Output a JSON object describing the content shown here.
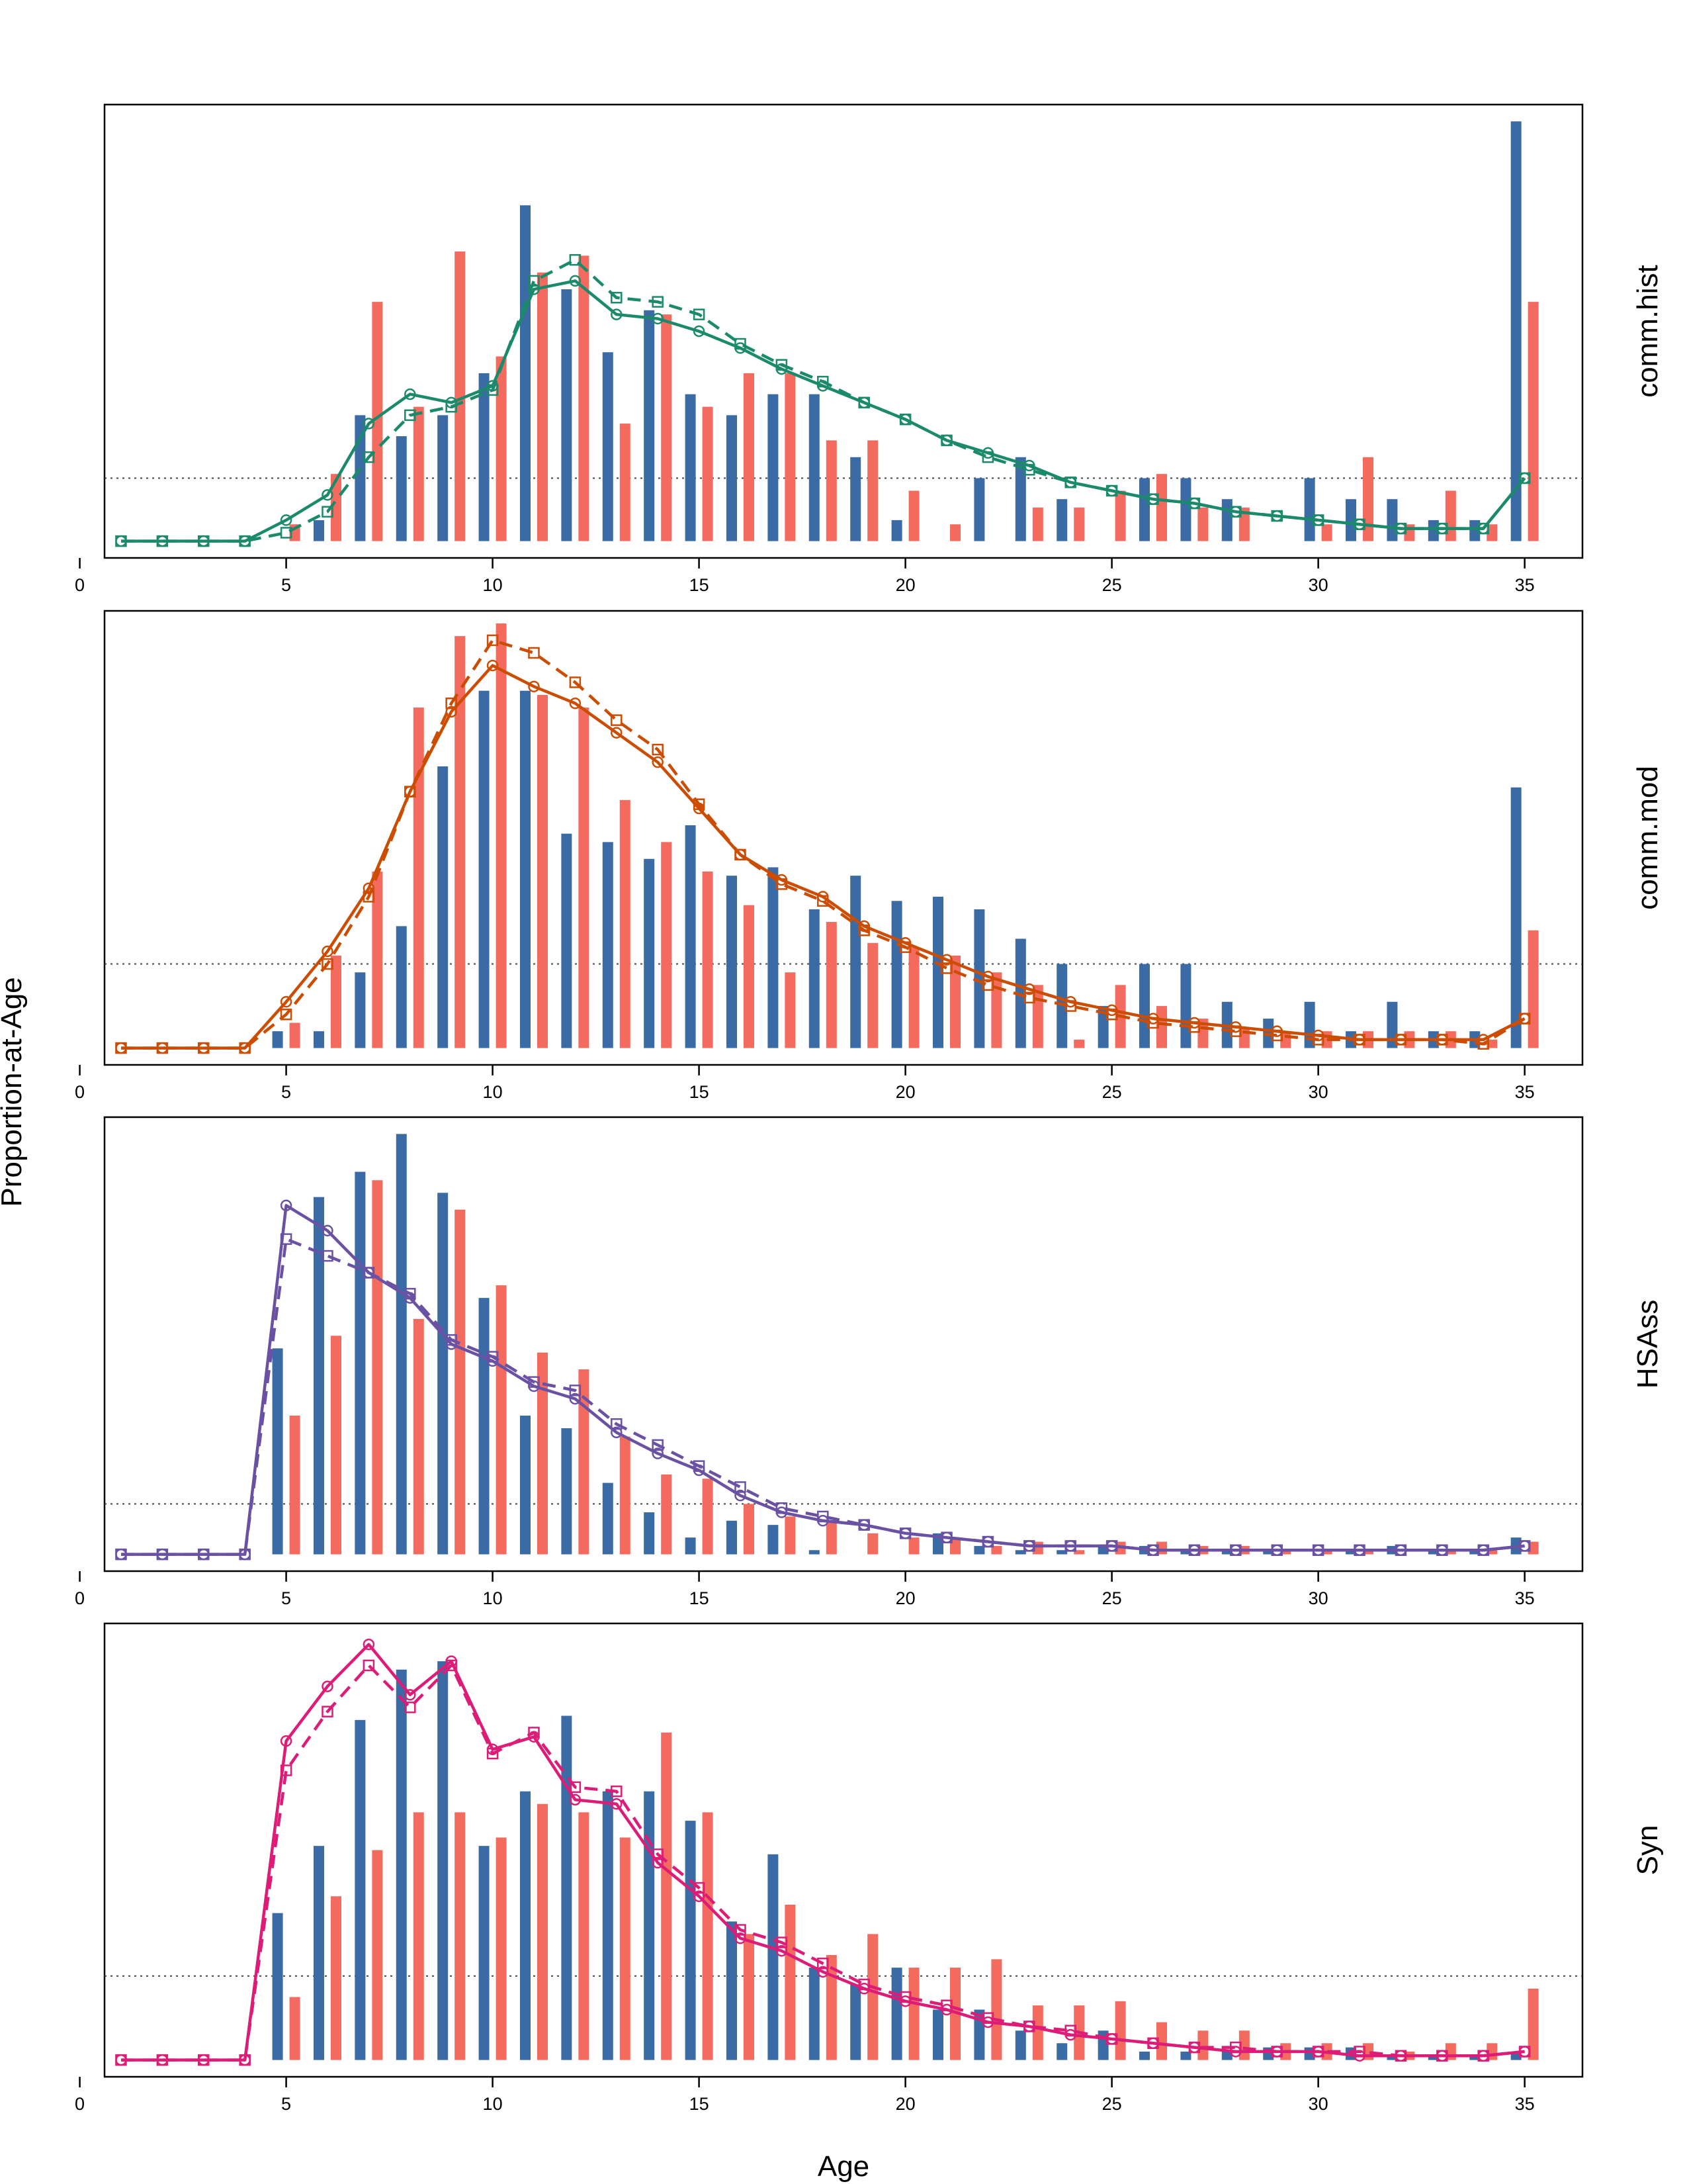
{
  "figure": {
    "xlabel": "Age",
    "ylabel": "Proportion-at-Age",
    "colors": {
      "bar_series_1": "#3b6ba5",
      "bar_series_2": "#f26b5e",
      "frame": "#000000",
      "reference_line": "#444444"
    }
  },
  "chart_data": [
    {
      "type": "bar",
      "panel": "comm.hist",
      "line_color": "#1b8a6b",
      "x": [
        1,
        2,
        3,
        4,
        5,
        6,
        7,
        8,
        9,
        10,
        11,
        12,
        13,
        14,
        15,
        16,
        17,
        18,
        19,
        20,
        21,
        22,
        23,
        24,
        25,
        26,
        27,
        28,
        29,
        30,
        31,
        32,
        33,
        34,
        35
      ],
      "xlim": [
        0.6,
        36.4
      ],
      "xticks": [
        0,
        5,
        10,
        15,
        20,
        25,
        30,
        35
      ],
      "ylim": [
        -0.004,
        0.104
      ],
      "reference_line": 0.015,
      "series": [
        {
          "values": [
            0,
            0,
            0,
            0,
            0,
            0.005,
            0.03,
            0.025,
            0.03,
            0.04,
            0.08,
            0.06,
            0.045,
            0.055,
            0.035,
            0.03,
            0.035,
            0.035,
            0.02,
            0.005,
            0,
            0.015,
            0.02,
            0.01,
            0,
            0.015,
            0.015,
            0.01,
            0,
            0.015,
            0.01,
            0.01,
            0.005,
            0.005,
            0.1
          ]
        },
        {
          "values": [
            0,
            0,
            0,
            0,
            0.004,
            0.016,
            0.057,
            0.032,
            0.069,
            0.044,
            0.064,
            0.068,
            0.028,
            0.054,
            0.032,
            0.04,
            0.04,
            0.024,
            0.024,
            0.012,
            0.004,
            0,
            0.008,
            0.008,
            0.012,
            0.016,
            0.008,
            0.008,
            0,
            0.004,
            0.02,
            0.004,
            0.012,
            0.004,
            0.057
          ]
        }
      ],
      "lines": [
        {
          "style": "solid",
          "marker": "circle",
          "values": [
            0,
            0,
            0,
            0,
            0.005,
            0.011,
            0.028,
            0.035,
            0.033,
            0.037,
            0.06,
            0.062,
            0.054,
            0.053,
            0.05,
            0.046,
            0.041,
            0.037,
            0.033,
            0.029,
            0.024,
            0.021,
            0.018,
            0.014,
            0.012,
            0.01,
            0.009,
            0.007,
            0.006,
            0.005,
            0.004,
            0.003,
            0.003,
            0.003,
            0.015
          ]
        },
        {
          "style": "dashed",
          "marker": "square",
          "values": [
            0,
            0,
            0,
            0,
            0.002,
            0.007,
            0.02,
            0.03,
            0.032,
            0.036,
            0.062,
            0.067,
            0.058,
            0.057,
            0.054,
            0.047,
            0.042,
            0.038,
            0.033,
            0.029,
            0.024,
            0.02,
            0.017,
            0.014,
            0.012,
            0.01,
            0.009,
            0.007,
            0.006,
            0.005,
            0.004,
            0.003,
            0.003,
            0.003,
            0.015
          ]
        }
      ]
    },
    {
      "type": "bar",
      "panel": "comm.mod",
      "line_color": "#cc4c02",
      "x": [
        1,
        2,
        3,
        4,
        5,
        6,
        7,
        8,
        9,
        10,
        11,
        12,
        13,
        14,
        15,
        16,
        17,
        18,
        19,
        20,
        21,
        22,
        23,
        24,
        25,
        26,
        27,
        28,
        29,
        30,
        31,
        32,
        33,
        34,
        35
      ],
      "xlim": [
        0.6,
        36.4
      ],
      "xticks": [
        0,
        5,
        10,
        15,
        20,
        25,
        30,
        35
      ],
      "ylim": [
        -0.004,
        0.104
      ],
      "reference_line": 0.02,
      "series": [
        {
          "values": [
            0,
            0,
            0,
            0,
            0.004,
            0.004,
            0.018,
            0.029,
            0.067,
            0.085,
            0.085,
            0.051,
            0.049,
            0.045,
            0.053,
            0.041,
            0.043,
            0.033,
            0.041,
            0.035,
            0.036,
            0.033,
            0.026,
            0.02,
            0.01,
            0.02,
            0.02,
            0.011,
            0.007,
            0.011,
            0.004,
            0.011,
            0.004,
            0.004,
            0.062
          ]
        },
        {
          "values": [
            0,
            0,
            0,
            0,
            0.006,
            0.022,
            0.042,
            0.081,
            0.098,
            0.101,
            0.084,
            0.081,
            0.059,
            0.049,
            0.042,
            0.034,
            0.018,
            0.03,
            0.025,
            0.024,
            0.022,
            0.018,
            0.015,
            0.002,
            0.015,
            0.01,
            0.007,
            0.005,
            0.004,
            0.004,
            0.004,
            0.004,
            0.004,
            0.002,
            0.028
          ]
        }
      ],
      "lines": [
        {
          "style": "solid",
          "marker": "circle",
          "values": [
            0,
            0,
            0,
            0,
            0.011,
            0.023,
            0.038,
            0.061,
            0.08,
            0.091,
            0.086,
            0.082,
            0.075,
            0.068,
            0.057,
            0.046,
            0.04,
            0.036,
            0.029,
            0.025,
            0.021,
            0.017,
            0.014,
            0.011,
            0.009,
            0.007,
            0.006,
            0.005,
            0.004,
            0.003,
            0.002,
            0.002,
            0.002,
            0.002,
            0.007
          ]
        },
        {
          "style": "dashed",
          "marker": "square",
          "values": [
            0,
            0,
            0,
            0,
            0.008,
            0.02,
            0.036,
            0.061,
            0.082,
            0.097,
            0.094,
            0.087,
            0.078,
            0.071,
            0.058,
            0.046,
            0.039,
            0.035,
            0.028,
            0.024,
            0.019,
            0.015,
            0.012,
            0.01,
            0.008,
            0.006,
            0.005,
            0.004,
            0.003,
            0.002,
            0.002,
            0.002,
            0.002,
            0.001,
            0.007
          ]
        }
      ]
    },
    {
      "type": "bar",
      "panel": "HSAss",
      "line_color": "#6a51a3",
      "x": [
        1,
        2,
        3,
        4,
        5,
        6,
        7,
        8,
        9,
        10,
        11,
        12,
        13,
        14,
        15,
        16,
        17,
        18,
        19,
        20,
        21,
        22,
        23,
        24,
        25,
        26,
        27,
        28,
        29,
        30,
        31,
        32,
        33,
        34,
        35
      ],
      "xlim": [
        0.6,
        36.4
      ],
      "xticks": [
        0,
        5,
        10,
        15,
        20,
        25,
        30,
        35
      ],
      "ylim": [
        -0.004,
        0.104
      ],
      "reference_line": 0.012,
      "series": [
        {
          "values": [
            0,
            0,
            0,
            0,
            0.049,
            0.085,
            0.091,
            0.1,
            0.086,
            0.061,
            0.033,
            0.03,
            0.017,
            0.01,
            0.004,
            0.008,
            0.007,
            0.001,
            0,
            0,
            0.005,
            0.002,
            0.001,
            0.001,
            0.002,
            0.002,
            0.001,
            0.001,
            0.001,
            0,
            0.001,
            0.002,
            0.001,
            0.001,
            0.004
          ]
        },
        {
          "values": [
            0,
            0,
            0,
            0,
            0.033,
            0.052,
            0.089,
            0.056,
            0.082,
            0.064,
            0.048,
            0.044,
            0.028,
            0.019,
            0.018,
            0.012,
            0.009,
            0.008,
            0.005,
            0.004,
            0.004,
            0.002,
            0.003,
            0.001,
            0.003,
            0.003,
            0.002,
            0.002,
            0.001,
            0.001,
            0.001,
            0,
            0.001,
            0.001,
            0.003
          ]
        }
      ],
      "lines": [
        {
          "style": "solid",
          "marker": "circle",
          "values": [
            0,
            0,
            0,
            0,
            0.083,
            0.077,
            0.067,
            0.061,
            0.05,
            0.046,
            0.04,
            0.037,
            0.029,
            0.024,
            0.02,
            0.014,
            0.01,
            0.008,
            0.007,
            0.005,
            0.004,
            0.003,
            0.002,
            0.002,
            0.002,
            0.001,
            0.001,
            0.001,
            0.001,
            0.001,
            0.001,
            0.001,
            0.001,
            0.001,
            0.002
          ]
        },
        {
          "style": "dashed",
          "marker": "square",
          "values": [
            0,
            0,
            0,
            0,
            0.075,
            0.071,
            0.067,
            0.062,
            0.051,
            0.047,
            0.041,
            0.039,
            0.031,
            0.026,
            0.021,
            0.016,
            0.011,
            0.009,
            0.007,
            0.005,
            0.004,
            0.003,
            0.002,
            0.002,
            0.002,
            0.001,
            0.001,
            0.001,
            0.001,
            0.001,
            0.001,
            0.001,
            0.001,
            0.001,
            0.002
          ]
        }
      ]
    },
    {
      "type": "bar",
      "panel": "Syn",
      "line_color": "#dd1c77",
      "x": [
        1,
        2,
        3,
        4,
        5,
        6,
        7,
        8,
        9,
        10,
        11,
        12,
        13,
        14,
        15,
        16,
        17,
        18,
        19,
        20,
        21,
        22,
        23,
        24,
        25,
        26,
        27,
        28,
        29,
        30,
        31,
        32,
        33,
        34,
        35
      ],
      "xlim": [
        0.6,
        36.4
      ],
      "xticks": [
        0,
        5,
        10,
        15,
        20,
        25,
        30,
        35
      ],
      "ylim": [
        -0.004,
        0.104
      ],
      "reference_line": 0.02,
      "series": [
        {
          "values": [
            0,
            0,
            0,
            0,
            0.035,
            0.051,
            0.081,
            0.093,
            0.095,
            0.051,
            0.064,
            0.082,
            0.064,
            0.064,
            0.057,
            0.033,
            0.049,
            0.022,
            0.018,
            0.022,
            0.012,
            0.012,
            0.007,
            0.004,
            0.007,
            0.002,
            0.002,
            0.002,
            0.003,
            0.003,
            0.003,
            0.001,
            0.001,
            0.001,
            0.002
          ]
        },
        {
          "values": [
            0,
            0,
            0,
            0,
            0.015,
            0.039,
            0.05,
            0.059,
            0.059,
            0.053,
            0.061,
            0.059,
            0.053,
            0.078,
            0.059,
            0.03,
            0.037,
            0.025,
            0.03,
            0.022,
            0.022,
            0.024,
            0.013,
            0.013,
            0.014,
            0.009,
            0.007,
            0.007,
            0.004,
            0.004,
            0.004,
            0.002,
            0.004,
            0.004,
            0.017
          ]
        }
      ],
      "lines": [
        {
          "style": "solid",
          "marker": "circle",
          "values": [
            0,
            0,
            0,
            0,
            0.076,
            0.089,
            0.099,
            0.087,
            0.095,
            0.074,
            0.077,
            0.062,
            0.061,
            0.047,
            0.039,
            0.029,
            0.026,
            0.021,
            0.017,
            0.014,
            0.012,
            0.009,
            0.008,
            0.006,
            0.005,
            0.004,
            0.003,
            0.002,
            0.002,
            0.002,
            0.001,
            0.001,
            0.001,
            0.001,
            0.002
          ]
        },
        {
          "style": "dashed",
          "marker": "square",
          "values": [
            0,
            0,
            0,
            0,
            0.069,
            0.083,
            0.094,
            0.084,
            0.094,
            0.073,
            0.078,
            0.065,
            0.064,
            0.049,
            0.041,
            0.031,
            0.028,
            0.023,
            0.018,
            0.015,
            0.013,
            0.01,
            0.008,
            0.007,
            0.005,
            0.004,
            0.003,
            0.003,
            0.002,
            0.002,
            0.002,
            0.001,
            0.001,
            0.001,
            0.002
          ]
        }
      ]
    }
  ]
}
